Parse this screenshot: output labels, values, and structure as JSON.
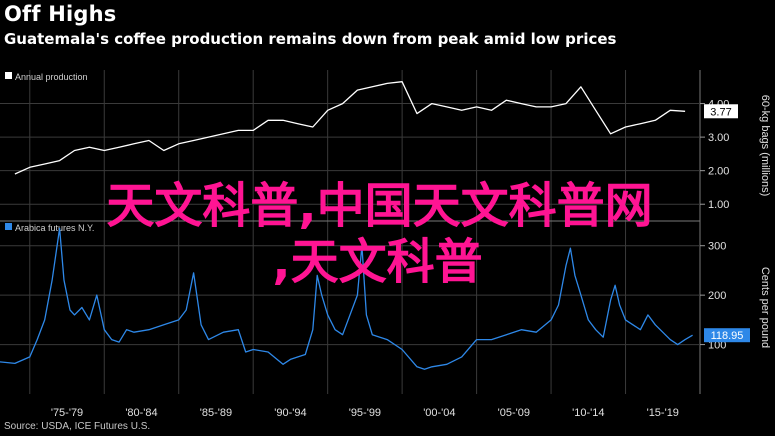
{
  "title": "Off Highs",
  "subtitle": "Guatemala's coffee production remains down from peak amid low prices",
  "overlay": {
    "line1": "天文科普,中国天文科普网",
    "line2": ",天文科普"
  },
  "source": "Source: USDA, ICE Futures U.S.",
  "colors": {
    "production": "#ffffff",
    "futures": "#2e88e8",
    "overlay": "#ff1493",
    "grid": "#3a3a3a",
    "bg": "#000000"
  },
  "chart_data": [
    {
      "type": "line",
      "legend": "Annual production",
      "ylabel": "60-kg bags (millions)",
      "ylim": [
        0.5,
        5.0
      ],
      "yticks": [
        {
          "v": 1.0,
          "label": "1.00"
        },
        {
          "v": 2.0,
          "label": "2.00"
        },
        {
          "v": 3.0,
          "label": "3.00"
        },
        {
          "v": 4.0,
          "label": "4.00"
        }
      ],
      "last_value_label": "3.77",
      "x": [
        1974,
        1975,
        1976,
        1977,
        1978,
        1979,
        1980,
        1981,
        1982,
        1983,
        1984,
        1985,
        1986,
        1987,
        1988,
        1989,
        1990,
        1991,
        1992,
        1993,
        1994,
        1995,
        1996,
        1997,
        1998,
        1999,
        2000,
        2001,
        2002,
        2003,
        2004,
        2005,
        2006,
        2007,
        2008,
        2009,
        2010,
        2011,
        2012,
        2013,
        2014,
        2015,
        2016,
        2017,
        2018,
        2019
      ],
      "y": [
        1.9,
        2.1,
        2.2,
        2.3,
        2.6,
        2.7,
        2.6,
        2.7,
        2.8,
        2.9,
        2.6,
        2.8,
        2.9,
        3.0,
        3.1,
        3.2,
        3.2,
        3.5,
        3.5,
        3.4,
        3.3,
        3.8,
        4.0,
        4.4,
        4.5,
        4.6,
        4.65,
        3.7,
        4.0,
        3.9,
        3.8,
        3.9,
        3.8,
        4.1,
        4.0,
        3.9,
        3.9,
        4.0,
        4.5,
        3.8,
        3.1,
        3.3,
        3.4,
        3.5,
        3.8,
        3.77
      ]
    },
    {
      "type": "line",
      "legend": "Arabica futures N.Y.",
      "ylabel": "Cents per pound",
      "ylim": [
        0,
        350
      ],
      "yticks": [
        {
          "v": 100,
          "label": "100"
        },
        {
          "v": 200,
          "label": "200"
        },
        {
          "v": 300,
          "label": "300"
        }
      ],
      "last_value_label": "118.95",
      "x": [
        1973.0,
        1974.0,
        1975.0,
        1975.5,
        1976.0,
        1976.5,
        1977.0,
        1977.3,
        1977.7,
        1978.0,
        1978.5,
        1979.0,
        1979.5,
        1980.0,
        1980.5,
        1981.0,
        1981.5,
        1982.0,
        1983.0,
        1984.0,
        1985.0,
        1985.5,
        1986.0,
        1986.5,
        1987.0,
        1988.0,
        1989.0,
        1989.5,
        1990.0,
        1991.0,
        1992.0,
        1992.5,
        1993.0,
        1993.5,
        1994.0,
        1994.3,
        1994.6,
        1995.0,
        1995.5,
        1996.0,
        1997.0,
        1997.3,
        1997.6,
        1998.0,
        1999.0,
        2000.0,
        2001.0,
        2001.5,
        2002.0,
        2003.0,
        2004.0,
        2005.0,
        2006.0,
        2007.0,
        2008.0,
        2009.0,
        2010.0,
        2010.5,
        2011.0,
        2011.3,
        2011.6,
        2012.0,
        2012.5,
        2013.0,
        2013.5,
        2014.0,
        2014.3,
        2014.6,
        2015.0,
        2016.0,
        2016.5,
        2017.0,
        2018.0,
        2018.5,
        2019.0,
        2019.5
      ],
      "y": [
        65,
        62,
        75,
        110,
        150,
        230,
        335,
        230,
        170,
        160,
        175,
        150,
        200,
        130,
        110,
        105,
        130,
        125,
        130,
        140,
        150,
        170,
        245,
        140,
        110,
        125,
        130,
        85,
        90,
        85,
        60,
        70,
        75,
        80,
        130,
        240,
        200,
        160,
        130,
        120,
        200,
        300,
        160,
        120,
        110,
        90,
        55,
        50,
        55,
        60,
        75,
        110,
        110,
        120,
        130,
        125,
        150,
        180,
        260,
        295,
        240,
        200,
        150,
        130,
        115,
        190,
        220,
        180,
        150,
        130,
        160,
        140,
        110,
        100,
        110,
        118.95
      ]
    }
  ],
  "x_axis": {
    "ticks": [
      "'75-'79",
      "'80-'84",
      "'85-'89",
      "'90-'94",
      "'95-'99",
      "'00-'04",
      "'05-'09",
      "'10-'14",
      "'15-'19"
    ]
  }
}
